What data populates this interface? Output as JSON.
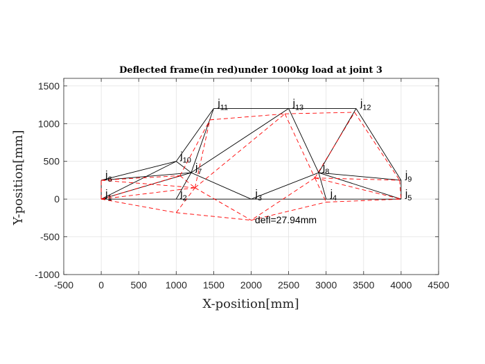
{
  "chart_data": {
    "type": "line",
    "title": "Deflected frame(in red)under 1000kg load at joint 3",
    "xlabel": "X-position[mm]",
    "ylabel": "Y-position[mm]",
    "xlim": [
      -500,
      4500
    ],
    "ylim": [
      -1000,
      1600
    ],
    "xticks": [
      -500,
      0,
      500,
      1000,
      1500,
      2000,
      2500,
      3000,
      3500,
      4000,
      4500
    ],
    "yticks": [
      -1000,
      -500,
      0,
      500,
      1000,
      1500
    ],
    "grid": true,
    "joints": [
      {
        "id": 1,
        "label": "j",
        "sub": "1",
        "x": 0,
        "y": 0
      },
      {
        "id": 2,
        "label": "j",
        "sub": "2",
        "x": 1000,
        "y": 0
      },
      {
        "id": 3,
        "label": "j",
        "sub": "3",
        "x": 2000,
        "y": 0
      },
      {
        "id": 4,
        "label": "j",
        "sub": "4",
        "x": 3000,
        "y": 0
      },
      {
        "id": 5,
        "label": "j",
        "sub": "5",
        "x": 4000,
        "y": 0
      },
      {
        "id": 6,
        "label": "j",
        "sub": "6",
        "x": 0,
        "y": 250
      },
      {
        "id": 7,
        "label": "j",
        "sub": "7",
        "x": 1200,
        "y": 350
      },
      {
        "id": 8,
        "label": "j",
        "sub": "8",
        "x": 2900,
        "y": 350
      },
      {
        "id": 9,
        "label": "j",
        "sub": "9",
        "x": 4000,
        "y": 250
      },
      {
        "id": 10,
        "label": "j",
        "sub": "10",
        "x": 1000,
        "y": 500
      },
      {
        "id": 11,
        "label": "j",
        "sub": "11",
        "x": 1500,
        "y": 1200
      },
      {
        "id": 12,
        "label": "j",
        "sub": "12",
        "x": 3400,
        "y": 1200
      },
      {
        "id": 13,
        "label": "j",
        "sub": "13",
        "x": 2500,
        "y": 1200
      }
    ],
    "deflected_joints": [
      {
        "id": 1,
        "x": 0,
        "y": 0
      },
      {
        "id": 2,
        "x": 1000,
        "y": -180
      },
      {
        "id": 3,
        "x": 2000,
        "y": -280
      },
      {
        "id": 4,
        "x": 3000,
        "y": -40
      },
      {
        "id": 5,
        "x": 4000,
        "y": 0
      },
      {
        "id": 6,
        "x": 0,
        "y": 250
      },
      {
        "id": 7,
        "x": 1250,
        "y": 150
      },
      {
        "id": 8,
        "x": 2850,
        "y": 280
      },
      {
        "id": 9,
        "x": 3980,
        "y": 250
      },
      {
        "id": 10,
        "x": 1050,
        "y": 310
      },
      {
        "id": 11,
        "x": 1450,
        "y": 1050
      },
      {
        "id": 12,
        "x": 3380,
        "y": 1150
      },
      {
        "id": 13,
        "x": 2450,
        "y": 1130
      }
    ],
    "members": [
      [
        1,
        2
      ],
      [
        2,
        3
      ],
      [
        3,
        4
      ],
      [
        4,
        5
      ],
      [
        1,
        6
      ],
      [
        6,
        10
      ],
      [
        6,
        7
      ],
      [
        1,
        7
      ],
      [
        10,
        7
      ],
      [
        10,
        11
      ],
      [
        1,
        10
      ],
      [
        2,
        7
      ],
      [
        7,
        3
      ],
      [
        7,
        11
      ],
      [
        7,
        13
      ],
      [
        11,
        13
      ],
      [
        13,
        12
      ],
      [
        13,
        8
      ],
      [
        8,
        3
      ],
      [
        8,
        4
      ],
      [
        8,
        12
      ],
      [
        8,
        9
      ],
      [
        12,
        9
      ],
      [
        9,
        5
      ],
      [
        8,
        5
      ]
    ],
    "series": [
      {
        "values_from": "joints",
        "color": "#000000",
        "style": "solid"
      },
      {
        "values_from": "deflected_joints",
        "color": "#ff0000",
        "style": "dashed"
      }
    ],
    "annotation": {
      "text": "defl=27.94mm",
      "x": 2050,
      "y": -320
    }
  }
}
